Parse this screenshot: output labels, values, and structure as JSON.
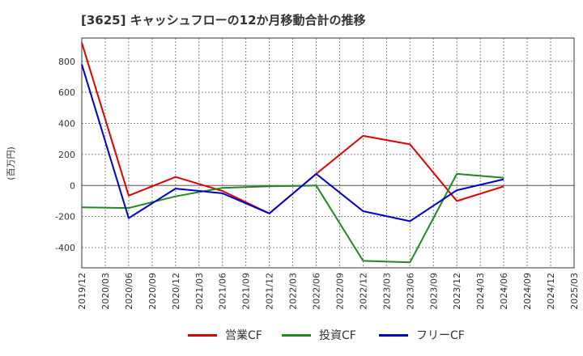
{
  "chart_data": {
    "type": "line",
    "title": "[3625]  キャッシュフローの12か月移動合計の推移",
    "ylabel": "(百万円)",
    "xlabel": "",
    "ylim": [
      -530,
      950
    ],
    "y_ticks": [
      800,
      600,
      400,
      200,
      0,
      -200,
      -400
    ],
    "y_tick_labels": [
      "800",
      "600",
      "400",
      "200",
      "0",
      "-200",
      "-400"
    ],
    "categories": [
      "2019/12",
      "2020/03",
      "2020/06",
      "2020/09",
      "2020/12",
      "2021/03",
      "2021/06",
      "2021/09",
      "2021/12",
      "2022/03",
      "2022/06",
      "2022/09",
      "2022/12",
      "2023/03",
      "2023/06",
      "2023/09",
      "2023/12",
      "2024/03",
      "2024/06",
      "2024/09",
      "2024/12",
      "2025/03"
    ],
    "series": [
      {
        "name": "営業CF",
        "color": "#e00000",
        "points": [
          [
            0,
            920
          ],
          [
            2,
            -65
          ],
          [
            4,
            55
          ],
          [
            6,
            -35
          ],
          [
            8,
            -180
          ],
          [
            10,
            75
          ],
          [
            12,
            320
          ],
          [
            14,
            265
          ],
          [
            16,
            -100
          ],
          [
            18,
            -5
          ]
        ]
      },
      {
        "name": "投資CF",
        "color": "#228822",
        "points": [
          [
            0,
            -140
          ],
          [
            2,
            -145
          ],
          [
            4,
            -70
          ],
          [
            6,
            -15
          ],
          [
            8,
            -5
          ],
          [
            10,
            0
          ],
          [
            12,
            -485
          ],
          [
            14,
            -495
          ],
          [
            16,
            75
          ],
          [
            18,
            50
          ]
        ]
      },
      {
        "name": "フリーCF",
        "color": "#0000cc",
        "points": [
          [
            0,
            780
          ],
          [
            2,
            -210
          ],
          [
            4,
            -20
          ],
          [
            6,
            -50
          ],
          [
            8,
            -180
          ],
          [
            10,
            75
          ],
          [
            12,
            -165
          ],
          [
            14,
            -230
          ],
          [
            16,
            -30
          ],
          [
            18,
            40
          ]
        ]
      }
    ],
    "legend_position": "bottom",
    "grid": true
  }
}
